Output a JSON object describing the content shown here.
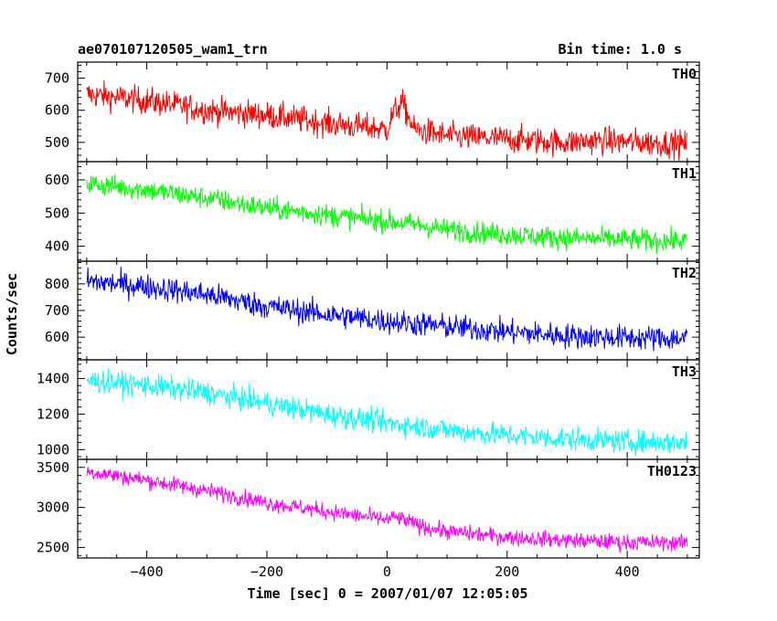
{
  "chart_data": {
    "type": "line",
    "title": "ae070107120505_wam1_trn",
    "subtitle": "Bin time: 1.0 s",
    "xlabel": "Time [sec] 0 = 2007/01/07 12:05:05",
    "ylabel": "Counts/sec",
    "xlim": [
      -515,
      520
    ],
    "xticks": [
      -400,
      -200,
      0,
      200,
      400
    ],
    "x_range": [
      -500,
      500
    ],
    "grid": false,
    "panels": [
      {
        "name": "TH0",
        "color": "#ff0000",
        "ylim": [
          440,
          750
        ],
        "yticks": [
          500,
          600,
          700
        ],
        "keypoints": [
          [
            -500,
            650
          ],
          [
            -400,
            630
          ],
          [
            -300,
            600
          ],
          [
            -200,
            585
          ],
          [
            -100,
            560
          ],
          [
            0,
            540
          ],
          [
            10,
            590
          ],
          [
            25,
            625
          ],
          [
            45,
            540
          ],
          [
            100,
            520
          ],
          [
            200,
            510
          ],
          [
            300,
            500
          ],
          [
            350,
            505
          ],
          [
            420,
            500
          ],
          [
            500,
            495
          ]
        ],
        "noise": 38
      },
      {
        "name": "TH1",
        "color": "#00ff00",
        "ylim": [
          355,
          655
        ],
        "yticks": [
          400,
          500,
          600
        ],
        "keypoints": [
          [
            -500,
            590
          ],
          [
            -400,
            570
          ],
          [
            -300,
            545
          ],
          [
            -200,
            515
          ],
          [
            -100,
            495
          ],
          [
            0,
            475
          ],
          [
            50,
            465
          ],
          [
            100,
            450
          ],
          [
            200,
            435
          ],
          [
            300,
            425
          ],
          [
            400,
            420
          ],
          [
            500,
            415
          ]
        ],
        "noise": 30
      },
      {
        "name": "TH2",
        "color": "#0000ff",
        "ylim": [
          515,
          885
        ],
        "yticks": [
          600,
          700,
          800
        ],
        "keypoints": [
          [
            -500,
            810
          ],
          [
            -400,
            790
          ],
          [
            -300,
            760
          ],
          [
            -200,
            715
          ],
          [
            -100,
            685
          ],
          [
            0,
            660
          ],
          [
            100,
            640
          ],
          [
            200,
            620
          ],
          [
            300,
            605
          ],
          [
            400,
            598
          ],
          [
            500,
            595
          ]
        ],
        "noise": 42
      },
      {
        "name": "TH3",
        "color": "#00ffff",
        "ylim": [
          945,
          1505
        ],
        "yticks": [
          1000,
          1200,
          1400
        ],
        "keypoints": [
          [
            -500,
            1390
          ],
          [
            -400,
            1360
          ],
          [
            -300,
            1320
          ],
          [
            -200,
            1260
          ],
          [
            -100,
            1200
          ],
          [
            0,
            1150
          ],
          [
            100,
            1110
          ],
          [
            200,
            1080
          ],
          [
            300,
            1060
          ],
          [
            400,
            1045
          ],
          [
            500,
            1040
          ]
        ],
        "noise": 58
      },
      {
        "name": "TH0123",
        "color": "#ff00ff",
        "ylim": [
          2370,
          3600
        ],
        "yticks": [
          2500,
          3000,
          3500
        ],
        "keypoints": [
          [
            -500,
            3450
          ],
          [
            -400,
            3340
          ],
          [
            -300,
            3210
          ],
          [
            -200,
            3060
          ],
          [
            -100,
            2950
          ],
          [
            0,
            2850
          ],
          [
            15,
            2880
          ],
          [
            60,
            2760
          ],
          [
            100,
            2700
          ],
          [
            200,
            2630
          ],
          [
            300,
            2590
          ],
          [
            400,
            2565
          ],
          [
            500,
            2560
          ]
        ],
        "noise": 90
      }
    ]
  }
}
